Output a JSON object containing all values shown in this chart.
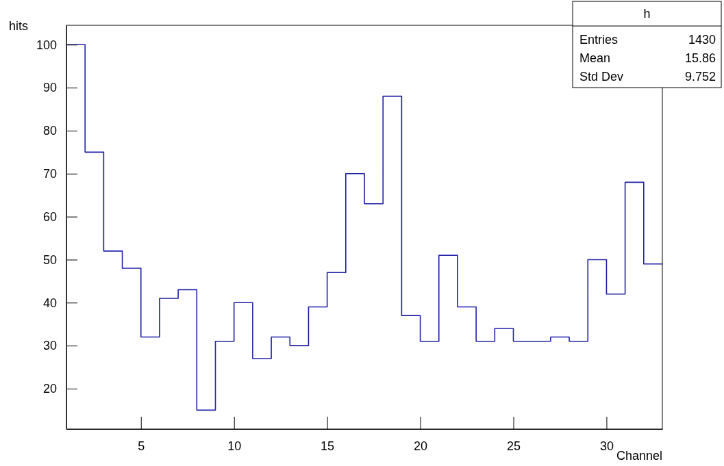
{
  "chart_data": {
    "type": "histogram",
    "xlabel": "Channel",
    "ylabel": "hits",
    "bins": [
      1,
      2,
      3,
      4,
      5,
      6,
      7,
      8,
      9,
      10,
      11,
      12,
      13,
      14,
      15,
      16,
      17,
      18,
      19,
      20,
      21,
      22,
      23,
      24,
      25,
      26,
      27,
      28,
      29,
      30,
      31,
      32,
      33
    ],
    "values": [
      100,
      75,
      52,
      48,
      32,
      41,
      43,
      15,
      31,
      40,
      27,
      32,
      30,
      39,
      47,
      70,
      63,
      88,
      37,
      31,
      51,
      39,
      31,
      34,
      31,
      31,
      32,
      31,
      50,
      42,
      68,
      49
    ],
    "color": "#2020a8",
    "xlim": [
      1,
      33
    ],
    "xticks": [
      5,
      10,
      15,
      20,
      25,
      30
    ],
    "ylim": [
      10.6,
      104.5
    ],
    "yticks": [
      20,
      30,
      40,
      50,
      60,
      70,
      80,
      90,
      100
    ],
    "grid": false,
    "annotations": [
      "h",
      "Entries",
      "1430",
      "Mean",
      "15.86",
      "Std Dev",
      "9.752"
    ]
  }
}
